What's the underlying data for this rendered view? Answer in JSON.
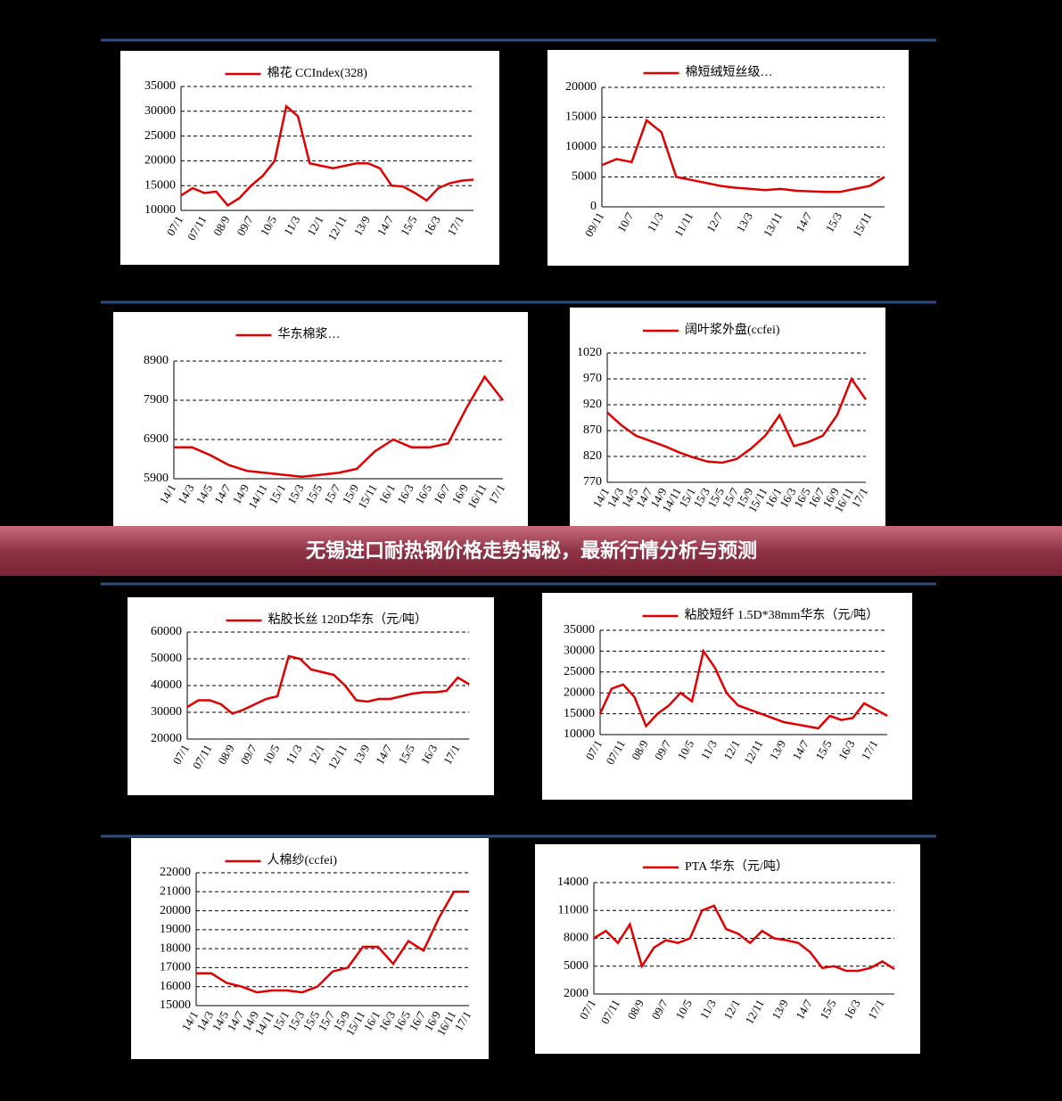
{
  "banner": "无锡进口耐热钢价格走势揭秘，最新行情分析与预测",
  "chart_data": [
    {
      "type": "line",
      "categories": [
        "07/1",
        null,
        "07/11",
        null,
        "08/9",
        null,
        "09/7",
        null,
        "10/5",
        null,
        "11/3",
        null,
        "12/1",
        null,
        "12/11",
        null,
        "13/9",
        null,
        "14/7",
        null,
        "15/5",
        null,
        "16/3",
        null,
        "17/1",
        null
      ],
      "series": [
        {
          "name": "棉花 CCIndex(328)",
          "color": "#e00000",
          "values": [
            13000,
            14500,
            13500,
            13800,
            11000,
            12500,
            15000,
            17000,
            20000,
            31000,
            29000,
            19500,
            19000,
            18500,
            19000,
            19500,
            19500,
            18500,
            15000,
            14800,
            13500,
            12000,
            14500,
            15500,
            16000,
            16200
          ]
        }
      ],
      "ylim": [
        10000,
        35000
      ],
      "yticks": [
        10000,
        15000,
        20000,
        25000,
        30000,
        35000
      ],
      "grid": true
    },
    {
      "type": "line",
      "categories": [
        "09/11",
        null,
        "10/7",
        null,
        "11/3",
        null,
        "11/11",
        null,
        "12/7",
        null,
        "13/3",
        null,
        "13/11",
        null,
        "14/7",
        null,
        "15/3",
        null,
        "15/11",
        null
      ],
      "series": [
        {
          "name": "棉短绒短丝级…",
          "color": "#e00000",
          "values": [
            7000,
            8000,
            7500,
            14500,
            12500,
            5000,
            4500,
            4000,
            3500,
            3200,
            3000,
            2800,
            3000,
            2700,
            2600,
            2500,
            2500,
            3000,
            3500,
            5000
          ]
        }
      ],
      "ylim": [
        0,
        20000
      ],
      "yticks": [
        0,
        5000,
        10000,
        15000,
        20000
      ],
      "grid": true
    },
    {
      "type": "line",
      "categories": [
        "14/1",
        "14/3",
        "14/5",
        "14/7",
        "14/9",
        "14/11",
        "15/1",
        "15/3",
        "15/5",
        "15/7",
        "15/9",
        "15/11",
        "16/1",
        "16/3",
        "16/5",
        "16/7",
        "16/9",
        "16/11",
        "17/1"
      ],
      "series": [
        {
          "name": "华东棉浆…",
          "color": "#e00000",
          "values": [
            6700,
            6700,
            6500,
            6250,
            6100,
            6050,
            6000,
            5950,
            6000,
            6050,
            6150,
            6600,
            6900,
            6700,
            6700,
            6800,
            7700,
            8500,
            7900
          ]
        }
      ],
      "ylim": [
        5900,
        8900
      ],
      "yticks": [
        5900,
        6900,
        7900,
        8900
      ],
      "grid": true
    },
    {
      "type": "line",
      "categories": [
        "14/1",
        "14/3",
        "14/5",
        "14/7",
        "14/9",
        "14/11",
        "15/1",
        "15/3",
        "15/5",
        "15/7",
        "15/9",
        "15/11",
        "16/1",
        "16/3",
        "16/5",
        "16/7",
        "16/9",
        "16/11",
        "17/1"
      ],
      "series": [
        {
          "name": "阔叶浆外盘(ccfei)",
          "color": "#e00000",
          "values": [
            905,
            880,
            860,
            850,
            840,
            828,
            818,
            810,
            808,
            815,
            835,
            860,
            900,
            840,
            848,
            860,
            900,
            970,
            930
          ]
        }
      ],
      "ylim": [
        770,
        1020
      ],
      "yticks": [
        770,
        820,
        870,
        920,
        970,
        1020
      ],
      "grid": true
    },
    {
      "type": "line",
      "categories": [
        "07/1",
        null,
        "07/11",
        null,
        "08/9",
        null,
        "09/7",
        null,
        "10/5",
        null,
        "11/3",
        null,
        "12/1",
        null,
        "12/11",
        null,
        "13/9",
        null,
        "14/7",
        null,
        "15/5",
        null,
        "16/3",
        null,
        "17/1",
        null
      ],
      "series": [
        {
          "name": "粘胶长丝 120D华东（元/吨）",
          "color": "#e00000",
          "values": [
            32000,
            34500,
            34500,
            33000,
            29500,
            31000,
            33000,
            35000,
            36000,
            51000,
            50000,
            46000,
            45000,
            44000,
            40000,
            34500,
            34000,
            35000,
            35000,
            36000,
            37000,
            37500,
            37500,
            38000,
            43000,
            40500
          ]
        }
      ],
      "ylim": [
        20000,
        60000
      ],
      "yticks": [
        20000,
        30000,
        40000,
        50000,
        60000
      ],
      "grid": true
    },
    {
      "type": "line",
      "categories": [
        "07/1",
        null,
        "07/11",
        null,
        "08/9",
        null,
        "09/7",
        null,
        "10/5",
        null,
        "11/3",
        null,
        "12/1",
        null,
        "12/11",
        null,
        "13/9",
        null,
        "14/7",
        null,
        "15/5",
        null,
        "16/3",
        null,
        "17/1",
        null
      ],
      "series": [
        {
          "name": "粘胶短纤 1.5D*38mm华东（元/吨）",
          "color": "#e00000",
          "values": [
            15000,
            21000,
            22000,
            19000,
            12000,
            15000,
            17000,
            20000,
            18000,
            30000,
            26000,
            20000,
            17000,
            16000,
            15000,
            14000,
            13000,
            12500,
            12000,
            11500,
            14500,
            13500,
            14000,
            17500,
            16000,
            14500
          ]
        }
      ],
      "ylim": [
        10000,
        35000
      ],
      "yticks": [
        10000,
        15000,
        20000,
        25000,
        30000,
        35000
      ],
      "grid": true
    },
    {
      "type": "line",
      "categories": [
        "14/1",
        "14/3",
        "14/5",
        "14/7",
        "14/9",
        "14/11",
        "15/1",
        "15/3",
        "15/5",
        "15/7",
        "15/9",
        "15/11",
        "16/1",
        "16/3",
        "16/5",
        "16/7",
        "16/9",
        "16/11",
        "17/1"
      ],
      "series": [
        {
          "name": "人棉纱(ccfei)",
          "color": "#e00000",
          "values": [
            16700,
            16700,
            16200,
            16000,
            15700,
            15800,
            15800,
            15700,
            16000,
            16800,
            17000,
            18100,
            18100,
            17200,
            18400,
            17900,
            19600,
            21000,
            21000
          ]
        }
      ],
      "ylim": [
        15000,
        22000
      ],
      "yticks": [
        15000,
        16000,
        17000,
        18000,
        19000,
        20000,
        21000,
        22000
      ],
      "grid": true
    },
    {
      "type": "line",
      "categories": [
        "07/1",
        null,
        "07/11",
        null,
        "08/9",
        null,
        "09/7",
        null,
        "10/5",
        null,
        "11/3",
        null,
        "12/1",
        null,
        "12/11",
        null,
        "13/9",
        null,
        "14/7",
        null,
        "15/5",
        null,
        "16/3",
        null,
        "17/1",
        null
      ],
      "series": [
        {
          "name": "PTA 华东（元/吨）",
          "color": "#e00000",
          "values": [
            8000,
            8800,
            7500,
            9500,
            5000,
            7000,
            7800,
            7500,
            8000,
            11000,
            11500,
            9000,
            8500,
            7500,
            8800,
            8000,
            7800,
            7500,
            6500,
            4800,
            5000,
            4500,
            4500,
            4800,
            5500,
            4700
          ]
        }
      ],
      "ylim": [
        2000,
        14000
      ],
      "yticks": [
        2000,
        5000,
        8000,
        11000,
        14000
      ],
      "grid": true
    }
  ]
}
